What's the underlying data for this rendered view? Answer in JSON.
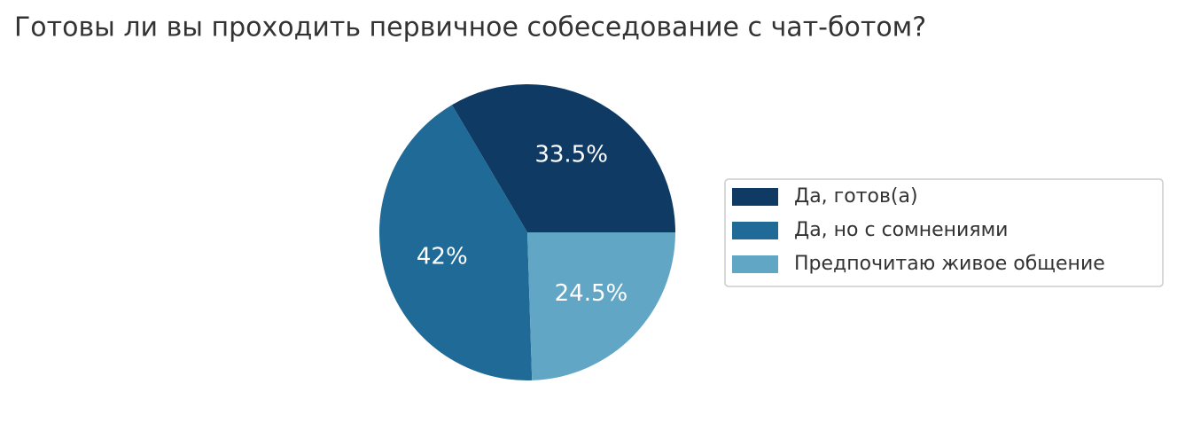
{
  "chart_data": {
    "type": "pie",
    "title": "Готовы ли вы проходить первичное собеседование с чат-ботом?",
    "categories": [
      "Да, готов(а)",
      "Да, но с сомнениями",
      "Предпочитаю живое общение"
    ],
    "values": [
      33.5,
      42,
      24.5
    ],
    "value_labels": [
      "33.5%",
      "42%",
      "24.5%"
    ],
    "colors": [
      "#0f3a63",
      "#1f6a96",
      "#62a6c6"
    ],
    "legend": "right"
  }
}
